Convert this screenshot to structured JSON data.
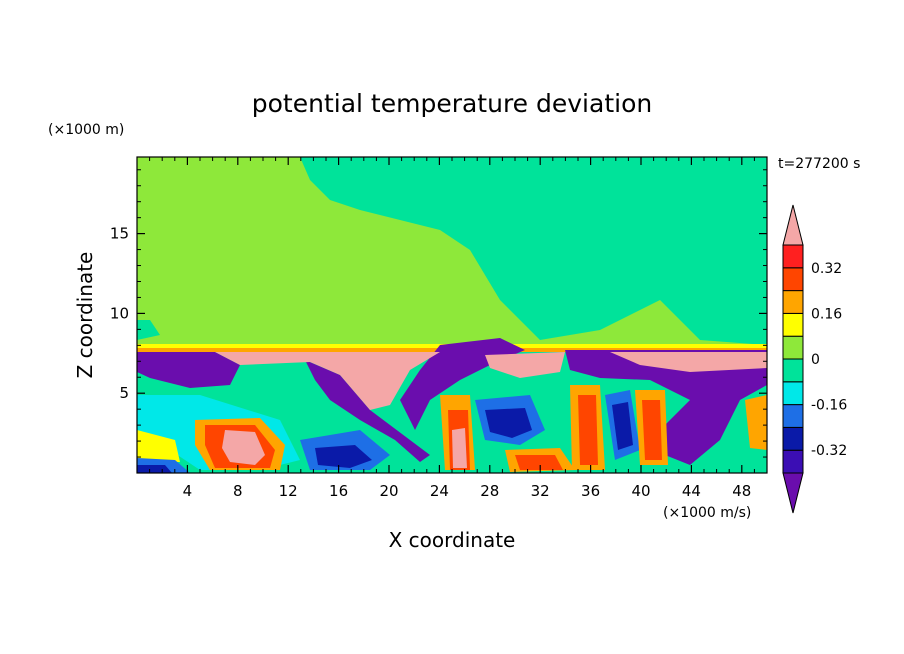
{
  "chart_data": {
    "type": "heatmap",
    "title": "potential temperature deviation",
    "xlabel": "X coordinate",
    "ylabel": "Z coordinate",
    "x_unit": "(×1000 m/s)",
    "y_unit": "(×1000 m)",
    "time_label": "t=277200 s",
    "xlim": [
      0,
      50
    ],
    "ylim": [
      0,
      19.8
    ],
    "x_ticks": [
      4,
      8,
      12,
      16,
      20,
      24,
      28,
      32,
      36,
      40,
      44,
      48
    ],
    "y_ticks": [
      5,
      10,
      15
    ],
    "colorbar": {
      "levels": [
        -0.4,
        -0.32,
        -0.24,
        -0.16,
        -0.08,
        0,
        0.08,
        0.16,
        0.24,
        0.32,
        0.4
      ],
      "labels": [
        "-0.32",
        "-0.16",
        "0",
        "0.16",
        "0.32"
      ],
      "label_values": [
        -0.32,
        -0.16,
        0,
        0.16,
        0.32
      ],
      "extend": "both",
      "colors": [
        "#6a0dad",
        "#3b0eb4",
        "#0a1aa8",
        "#1e6fe6",
        "#00e8e8",
        "#00e39a",
        "#8ee83a",
        "#ffff00",
        "#ffa500",
        "#ff4500",
        "#ff2020",
        "#f4a7a7"
      ]
    }
  }
}
